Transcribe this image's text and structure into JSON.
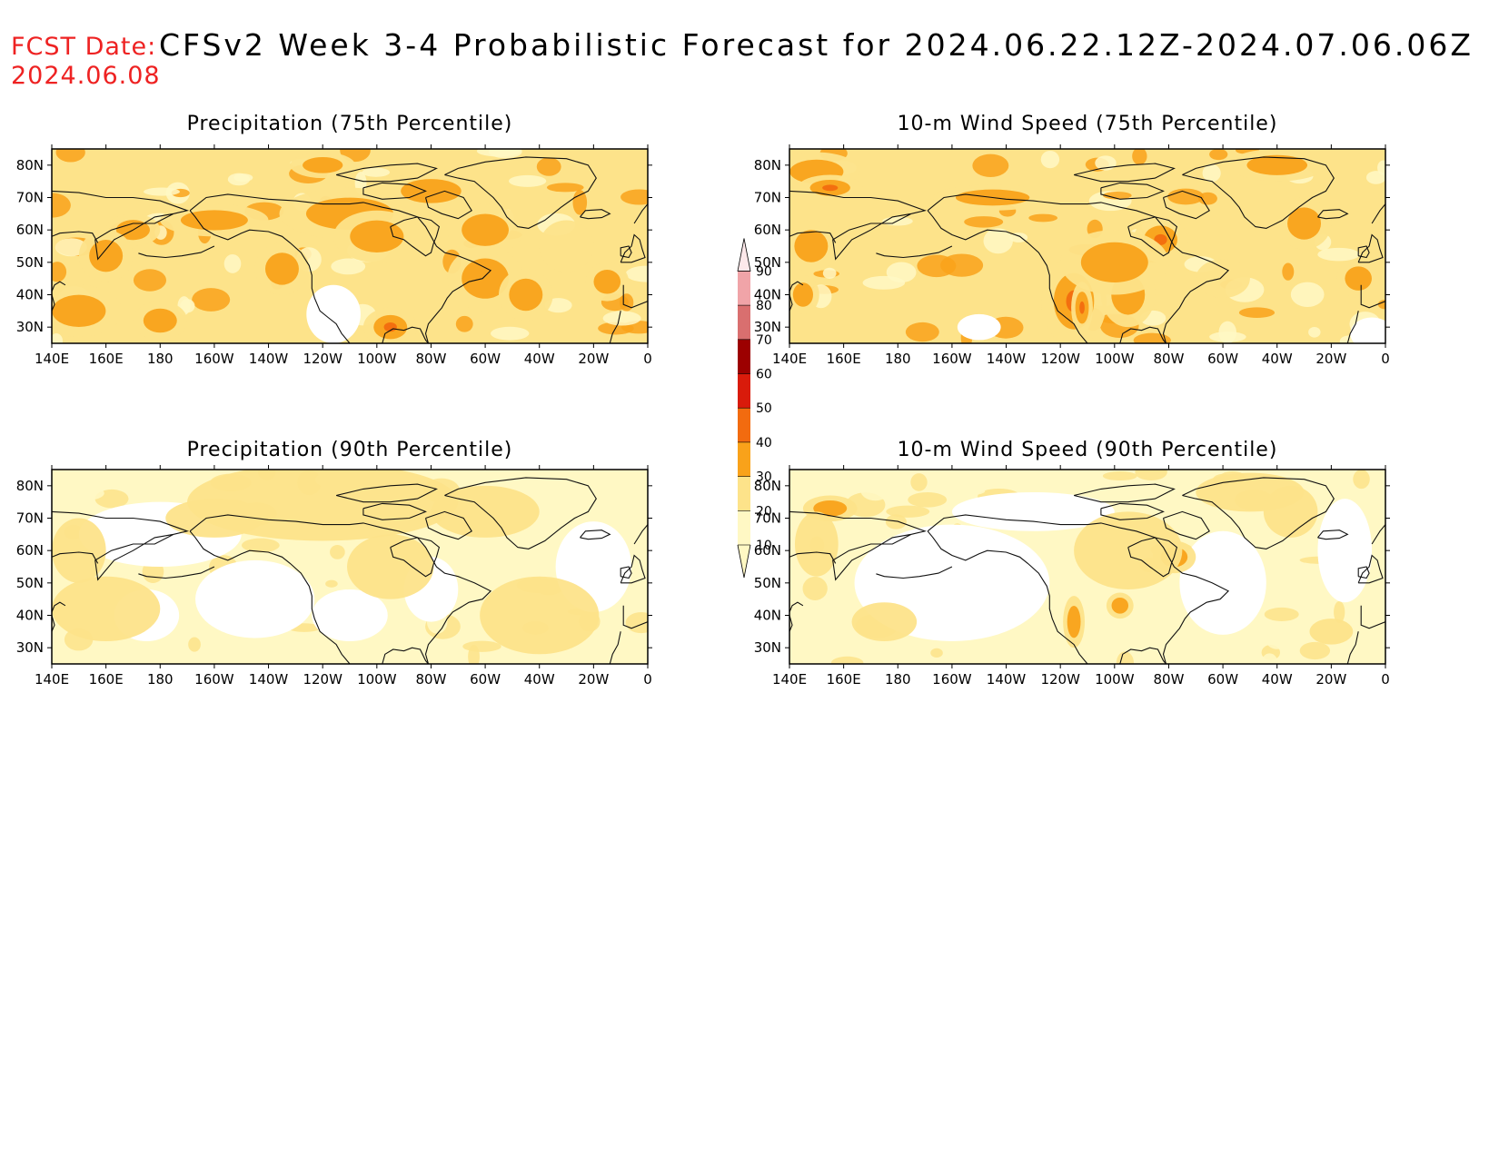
{
  "header": {
    "fcst_label": "FCST Date:",
    "fcst_date": "2024.06.08",
    "title": "CFSv2 Week 3-4 Probabilistic Forecast for 2024.06.22.12Z-2024.07.06.06Z",
    "label_color": "#ee2222"
  },
  "axes": {
    "lat_labels": [
      "80N",
      "70N",
      "60N",
      "50N",
      "40N",
      "30N"
    ],
    "lat_values": [
      80,
      70,
      60,
      50,
      40,
      30
    ],
    "lon_labels": [
      "140E",
      "160E",
      "180",
      "160W",
      "140W",
      "120W",
      "100W",
      "80W",
      "60W",
      "40W",
      "20W",
      "0"
    ],
    "lon_values": [
      140,
      160,
      180,
      200,
      220,
      240,
      260,
      280,
      300,
      320,
      340,
      360
    ],
    "lon_range": [
      140,
      360
    ],
    "lat_range": [
      25,
      85
    ]
  },
  "panels": [
    {
      "title": "Precipitation (75th Percentile)",
      "variable": "precip",
      "percentile": 75
    },
    {
      "title": "10-m Wind Speed (75th Percentile)",
      "variable": "wind",
      "percentile": 75
    },
    {
      "title": "Precipitation (90th Percentile)",
      "variable": "precip",
      "percentile": 90
    },
    {
      "title": "10-m Wind Speed (90th Percentile)",
      "variable": "wind",
      "percentile": 90
    }
  ],
  "colorbar": {
    "levels": [
      "10",
      "20",
      "30",
      "40",
      "50",
      "60",
      "70",
      "80",
      "90"
    ],
    "colors": [
      "#fff8c4",
      "#fde38a",
      "#f9a21a",
      "#f26b0f",
      "#d91b0b",
      "#9c0000",
      "#d96f6f",
      "#f0a4a8",
      "#fde8ea"
    ]
  }
}
